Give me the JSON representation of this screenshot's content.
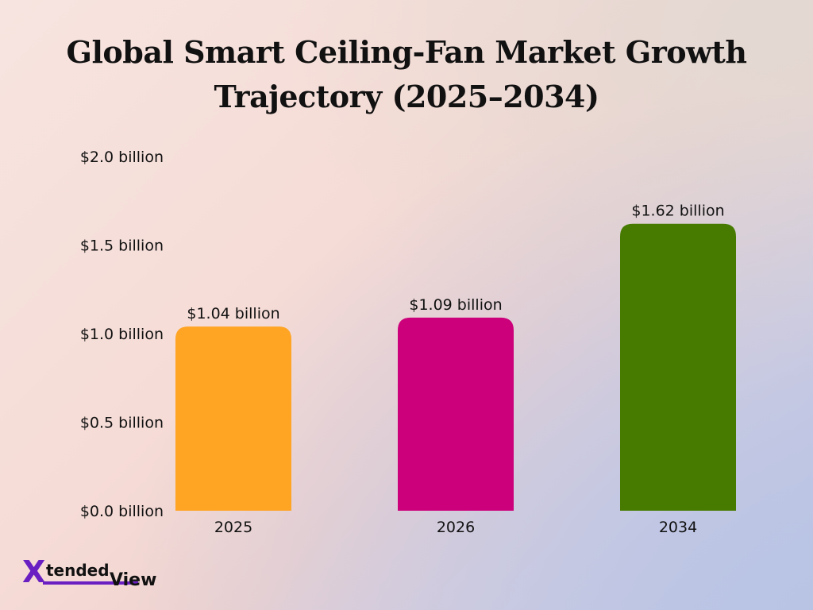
{
  "chart_data": {
    "type": "bar",
    "title": "Global Smart Ceiling-Fan Market Growth Trajectory (2025–2034)",
    "categories": [
      "2025",
      "2026",
      "2034"
    ],
    "values": [
      1.04,
      1.09,
      1.62
    ],
    "data_labels": [
      "$1.04 billion",
      "$1.09 billion",
      "$1.62 billion"
    ],
    "colors": [
      "#ffa423",
      "#cc007a",
      "#467b00"
    ],
    "ylim": [
      0,
      2.0
    ],
    "yticks": [
      0.0,
      0.5,
      1.0,
      1.5,
      2.0
    ],
    "ytick_labels": [
      "$0.0 billion",
      "$0.5 billion",
      "$1.0 billion",
      "$1.5 billion",
      "$2.0 billion"
    ],
    "xlabel": "",
    "ylabel": "",
    "grid": false,
    "legend": "none"
  },
  "logo": {
    "mark": "X",
    "text_top": "tended",
    "text_bottom": "View",
    "accent_color": "#6a1fc2"
  }
}
